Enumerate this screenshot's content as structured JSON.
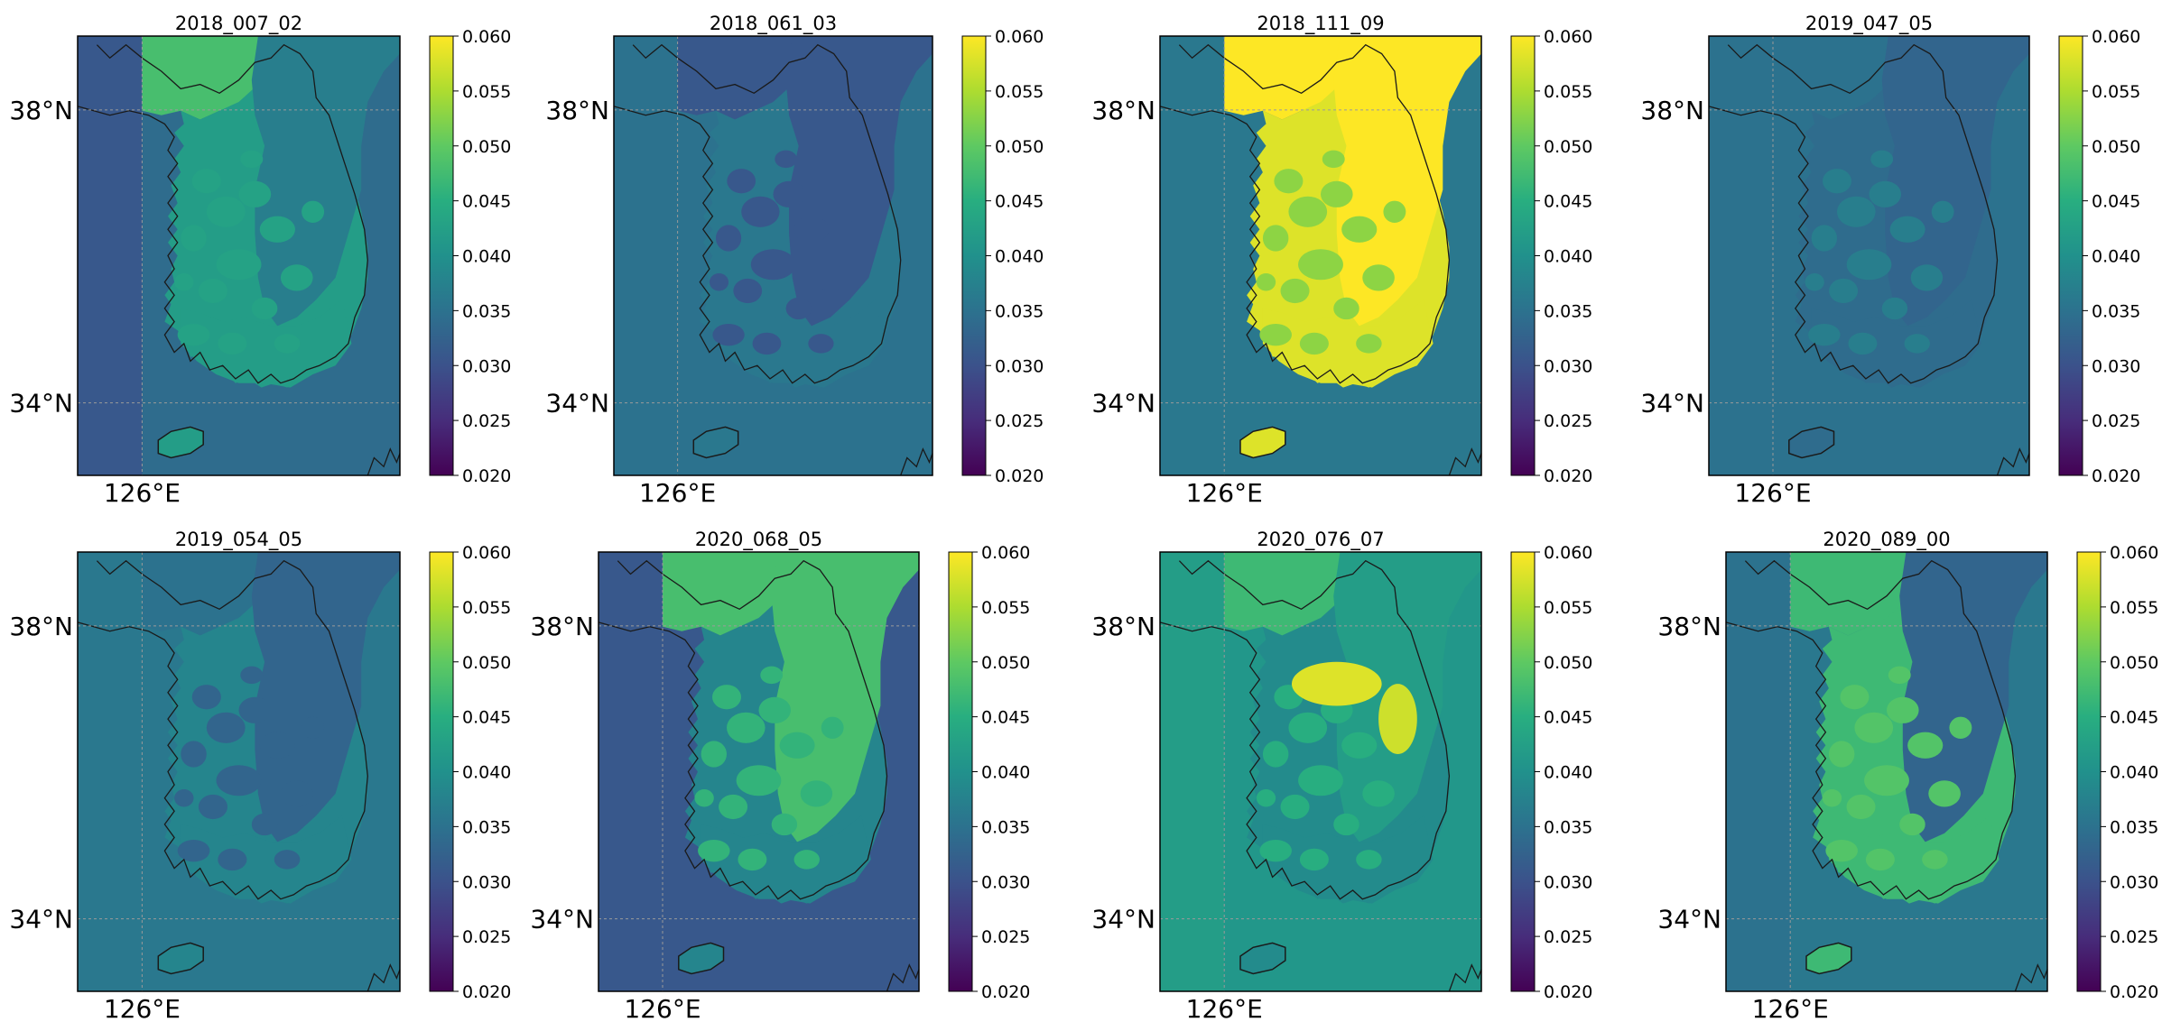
{
  "figure": {
    "colormap": "viridis",
    "vmin": 0.02,
    "vmax": 0.06,
    "colorbar_ticks": [
      "0.060",
      "0.055",
      "0.050",
      "0.045",
      "0.040",
      "0.035",
      "0.030",
      "0.025",
      "0.020"
    ],
    "lat_labels": [
      "38°N",
      "34°N"
    ],
    "lon_label": "126°E",
    "land_color": "#3b8a8d",
    "coast_color": "#1a1a1a",
    "grid_color": "#9a9a9a"
  },
  "chart_data": [
    {
      "type": "heatmap",
      "title": "2018_007_02",
      "background": 0.034,
      "land_mean": 0.042,
      "west_sea": 0.031,
      "nk_land": 0.048,
      "east_part": 0.037,
      "patches": 0.043,
      "hotspots": []
    },
    {
      "type": "heatmap",
      "title": "2018_061_03",
      "background": 0.035,
      "land_mean": 0.036,
      "west_sea": 0.035,
      "nk_land": 0.031,
      "east_part": 0.031,
      "patches": 0.031,
      "hotspots": []
    },
    {
      "type": "heatmap",
      "title": "2018_111_09",
      "background": 0.036,
      "land_mean": 0.058,
      "west_sea": 0.036,
      "nk_land": 0.06,
      "east_part": 0.06,
      "patches": 0.053,
      "hotspots": []
    },
    {
      "type": "heatmap",
      "title": "2019_047_05",
      "background": 0.035,
      "land_mean": 0.034,
      "west_sea": 0.035,
      "nk_land": 0.035,
      "east_part": 0.033,
      "patches": 0.037,
      "hotspots": []
    },
    {
      "type": "heatmap",
      "title": "2019_054_05",
      "background": 0.036,
      "land_mean": 0.038,
      "west_sea": 0.036,
      "nk_land": 0.035,
      "east_part": 0.033,
      "patches": 0.033,
      "hotspots": []
    },
    {
      "type": "heatmap",
      "title": "2020_068_05",
      "background": 0.031,
      "land_mean": 0.038,
      "west_sea": 0.031,
      "nk_land": 0.048,
      "east_part": 0.048,
      "patches": 0.046,
      "hotspots": []
    },
    {
      "type": "heatmap",
      "title": "2020_076_07",
      "background": 0.041,
      "land_mean": 0.039,
      "west_sea": 0.042,
      "nk_land": 0.047,
      "east_part": 0.042,
      "patches": 0.045,
      "hotspots": [
        0.058,
        0.057
      ]
    },
    {
      "type": "heatmap",
      "title": "2020_089_00",
      "background": 0.036,
      "land_mean": 0.047,
      "west_sea": 0.035,
      "nk_land": 0.047,
      "east_part": 0.033,
      "patches": 0.049,
      "hotspots": []
    }
  ]
}
